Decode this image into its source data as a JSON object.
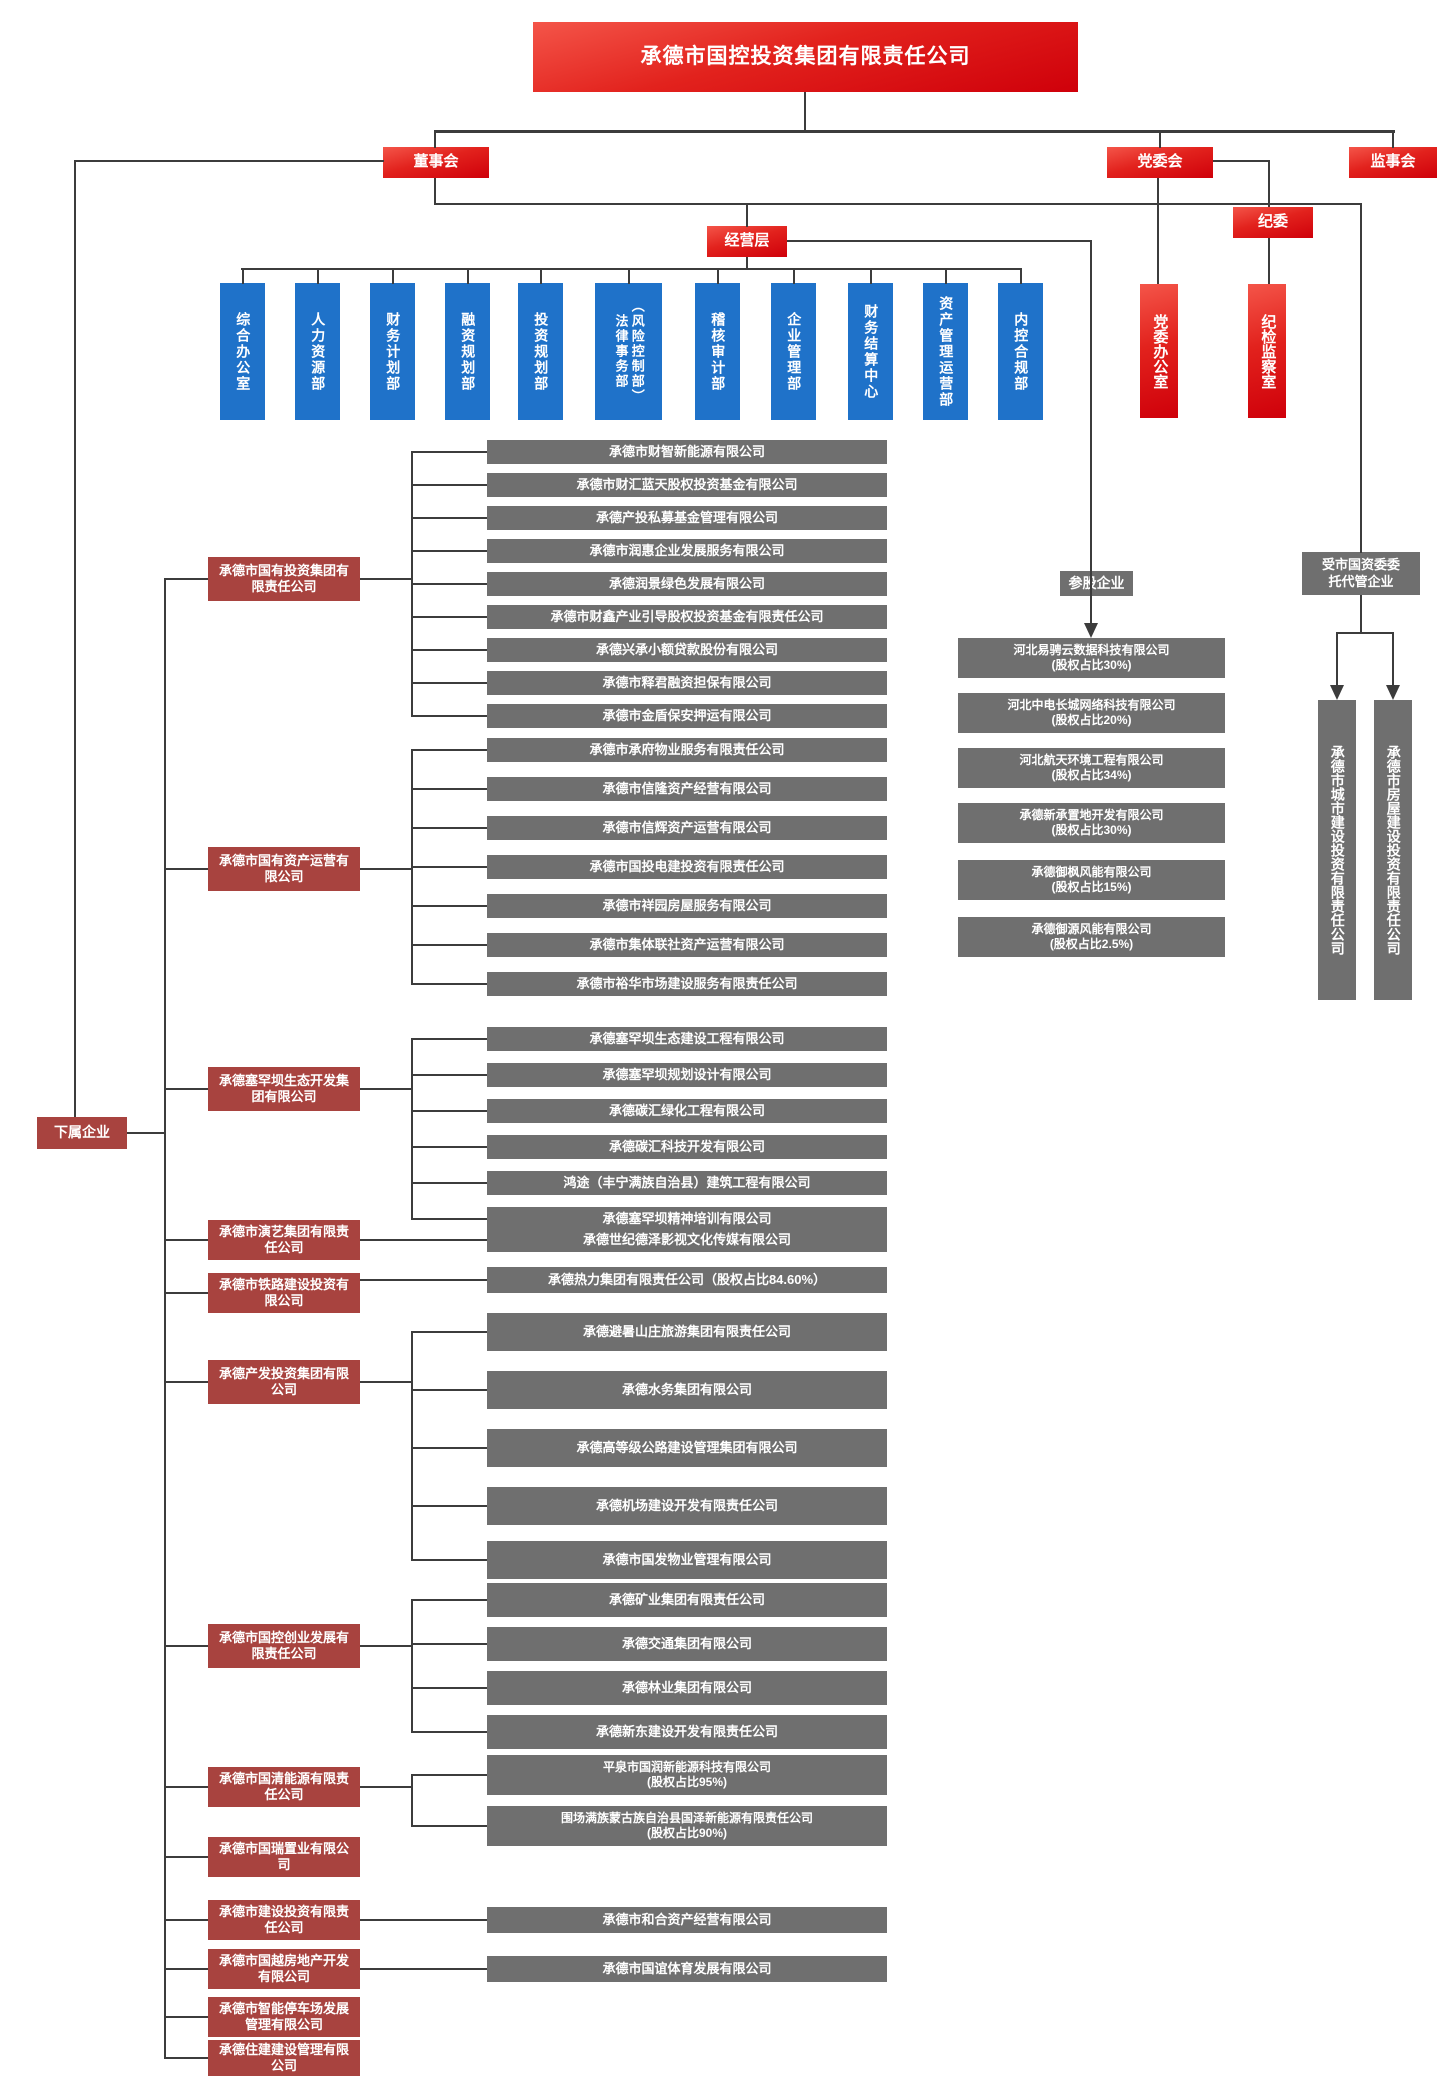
{
  "title": "承德市国控投资集团有限责任公司",
  "governance": {
    "board": "董事会",
    "party_committee": "党委会",
    "supervisory_board": "监事会",
    "discipline_committee": "纪委",
    "management": "经营层",
    "party_office": "党委办公室",
    "discipline_office": "纪检监察室"
  },
  "departments": [
    "综合办公室",
    "人力资源部",
    "财务计划部",
    "融资规划部",
    "投资规划部",
    "（风险控制部）\n法律事务部",
    "稽核审计部",
    "企业管理部",
    "财务结算中心",
    "资产管理运营部",
    "内控合规部"
  ],
  "subsidiaries_label": "下属企业",
  "groups": [
    {
      "parent": "承德市国有投资集团有限责任公司",
      "children": [
        "承德市财智新能源有限公司",
        "承德市财汇蓝天股权投资基金有限公司",
        "承德产投私募基金管理有限公司",
        "承德市润惠企业发展服务有限公司",
        "承德润景绿色发展有限公司",
        "承德市财鑫产业引导股权投资基金有限责任公司",
        "承德兴承小额贷款股份有限公司",
        "承德市释君融资担保有限公司",
        "承德市金盾保安押运有限公司"
      ]
    },
    {
      "parent": "承德市国有资产运营有限公司",
      "children": [
        "承德市承府物业服务有限责任公司",
        "承德市信隆资产经营有限公司",
        "承德市信辉资产运营有限公司",
        "承德市国投电建投资有限责任公司",
        "承德市祥园房屋服务有限公司",
        "承德市集体联社资产运营有限公司",
        "承德市裕华市场建设服务有限责任公司"
      ]
    },
    {
      "parent": "承德塞罕坝生态开发集团有限公司",
      "children": [
        "承德塞罕坝生态建设工程有限公司",
        "承德塞罕坝规划设计有限公司",
        "承德碳汇绿化工程有限公司",
        "承德碳汇科技开发有限公司",
        "鸿途（丰宁满族自治县）建筑工程有限公司",
        "承德塞罕坝精神培训有限公司"
      ]
    },
    {
      "parent": "承德市演艺集团有限责任公司",
      "children": [
        "承德世纪德泽影视文化传媒有限公司"
      ]
    },
    {
      "parent": "承德市铁路建设投资有限公司",
      "children": [
        "承德热力集团有限责任公司（股权占比84.60%）"
      ]
    },
    {
      "parent": "承德产发投资集团有限公司",
      "children": [
        "承德避暑山庄旅游集团有限责任公司",
        "承德水务集团有限公司",
        "承德高等级公路建设管理集团有限公司",
        "承德机场建设开发有限责任公司",
        "承德市国发物业管理有限公司"
      ]
    },
    {
      "parent": "承德市国控创业发展有限责任公司",
      "children": [
        "承德矿业集团有限责任公司",
        "承德交通集团有限公司",
        "承德林业集团有限公司",
        "承德新东建设开发有限责任公司"
      ]
    },
    {
      "parent": "承德市国清能源有限责任公司",
      "children": [
        "平泉市国润新能源科技有限公司\n(股权占比95%)",
        "围场满族蒙古族自治县国泽新能源有限责任公司\n(股权占比90%)"
      ]
    },
    {
      "parent": "承德市国瑞置业有限公司",
      "children": []
    },
    {
      "parent": "承德市建设投资有限责任公司",
      "children": [
        "承德市和合资产经营有限公司"
      ]
    },
    {
      "parent": "承德市国越房地产开发有限公司",
      "children": [
        "承德市国谊体育发展有限公司"
      ]
    },
    {
      "parent": "承德市智能停车场发展管理有限公司",
      "children": []
    },
    {
      "parent": "承德住建建设管理有限公司",
      "children": []
    }
  ],
  "equity": {
    "label": "参股企业",
    "companies": [
      {
        "name": "河北易骋云数据科技有限公司",
        "share": "(股权占比30%)"
      },
      {
        "name": "河北中电长城网络科技有限公司",
        "share": "(股权占比20%)"
      },
      {
        "name": "河北航天环境工程有限公司",
        "share": "(股权占比34%)"
      },
      {
        "name": "承德新承置地开发有限公司",
        "share": "(股权占比30%)"
      },
      {
        "name": "承德御枫风能有限公司",
        "share": "(股权占比15%)"
      },
      {
        "name": "承德御源风能有限公司",
        "share": "(股权占比2.5%)"
      }
    ]
  },
  "entrusted": {
    "label": "受市国资委委\n托代管企业",
    "companies": [
      "承德市城市建设投资有限责任公司",
      "承德市房屋建设投资有限责任公司"
    ]
  },
  "colors": {
    "bright_red": "#E2221D",
    "maroon": "#A8433F",
    "blue": "#1F72C9",
    "gray": "#6F6F6F",
    "line": "#3C3C3C",
    "text": "#FFFFFF"
  }
}
